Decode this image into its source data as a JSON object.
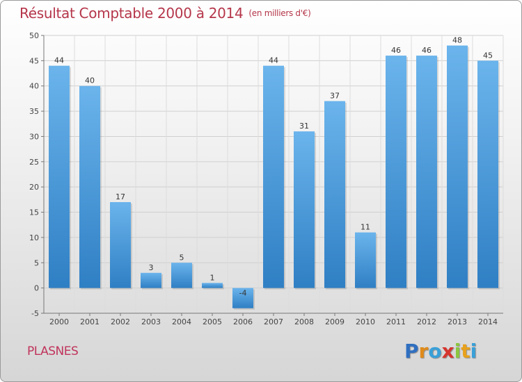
{
  "header": {
    "title": "Résultat Comptable 2000 à 2014",
    "subtitle": "(en milliers d'€)"
  },
  "footer": {
    "commune": "PLASNES",
    "logo_letters": [
      "P",
      "r",
      "o",
      "x",
      "i",
      "t",
      "i"
    ],
    "logo_colors": [
      "#2f6fc0",
      "#e08b1a",
      "#3aa0d8",
      "#d6342e",
      "#8cc63f",
      "#e7a11c",
      "#3aa0d8"
    ]
  },
  "chart_data": {
    "type": "bar",
    "categories": [
      "2000",
      "2001",
      "2002",
      "2003",
      "2004",
      "2005",
      "2006",
      "2007",
      "2008",
      "2009",
      "2010",
      "2011",
      "2012",
      "2013",
      "2014"
    ],
    "values": [
      44,
      40,
      17,
      3,
      5,
      1,
      -4,
      44,
      31,
      37,
      11,
      46,
      46,
      48,
      45
    ],
    "data_labels": [
      "44",
      "40",
      "17",
      "3",
      "5",
      "1",
      "-4",
      "44",
      "31",
      "37",
      "11",
      "46",
      "46",
      "48",
      "45"
    ],
    "ylim": [
      -5,
      50
    ],
    "yticks": [
      -5,
      0,
      5,
      10,
      15,
      20,
      25,
      30,
      35,
      40,
      45,
      50
    ],
    "grid": true,
    "bar_color": "#3f93dc"
  }
}
